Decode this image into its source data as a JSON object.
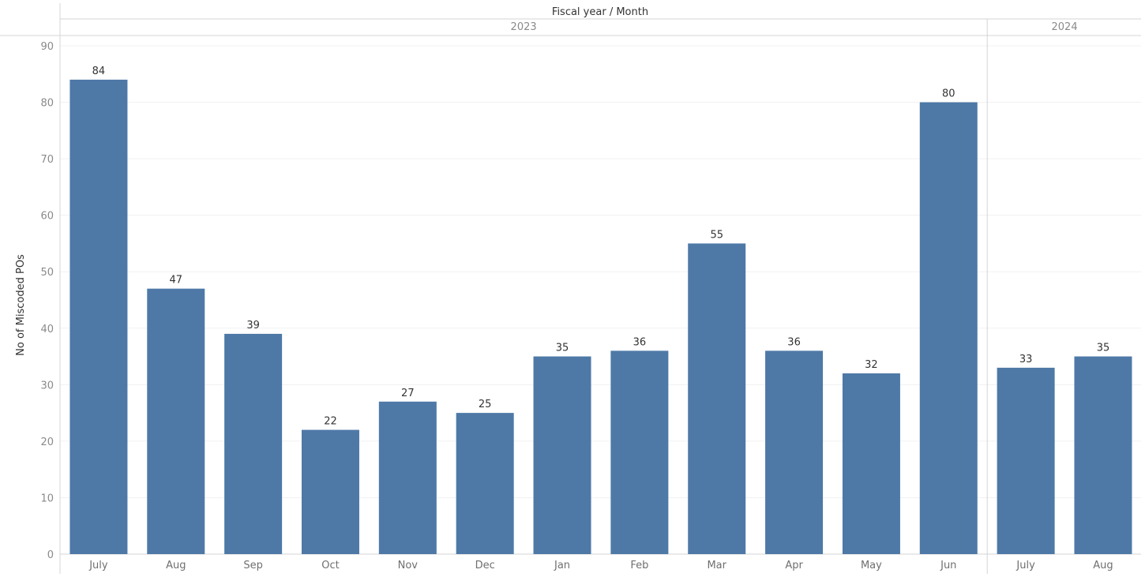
{
  "chart_data": {
    "type": "bar",
    "title": "",
    "column_header_title": "Fiscal year / Month",
    "ylabel": "No of Miscoded POs",
    "xlabel": "",
    "ylim": [
      0,
      90
    ],
    "yticks": [
      0,
      10,
      20,
      30,
      40,
      50,
      60,
      70,
      80,
      90
    ],
    "grid": true,
    "data_labels": true,
    "colors": {
      "bar": "#4e79a7"
    },
    "groups": [
      {
        "year": "2023",
        "categories": [
          "July",
          "Aug",
          "Sep",
          "Oct",
          "Nov",
          "Dec",
          "Jan",
          "Feb",
          "Mar",
          "Apr",
          "May",
          "Jun"
        ],
        "values": [
          84,
          47,
          39,
          22,
          27,
          25,
          35,
          36,
          55,
          36,
          32,
          80
        ]
      },
      {
        "year": "2024",
        "categories": [
          "July",
          "Aug"
        ],
        "values": [
          33,
          35
        ]
      }
    ]
  }
}
